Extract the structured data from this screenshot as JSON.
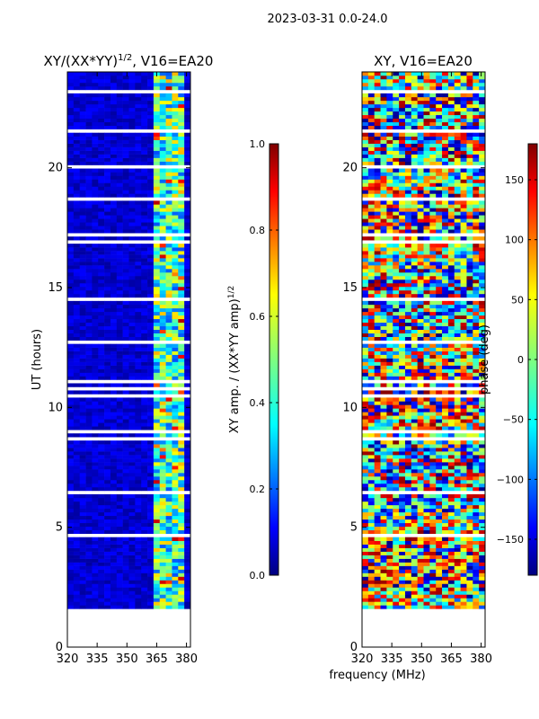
{
  "suptitle": "2023-03-31 0.0-24.0",
  "shared_xlabel": "frequency (MHz)",
  "chart_data": [
    {
      "type": "heatmap",
      "title": "XY/(XX*YY)",
      "title_exp": "1/2",
      "title_suffix": ", V16=EA20",
      "ylabel": "UT (hours)",
      "xlim": [
        320,
        382
      ],
      "ylim": [
        0,
        24
      ],
      "xticks": [
        320,
        335,
        350,
        365,
        380
      ],
      "yticks": [
        0,
        5,
        10,
        15,
        20
      ],
      "data_extent_y": [
        1.6,
        24
      ],
      "bright_band_freq": [
        362,
        380
      ],
      "colorbar": {
        "label": "XY amp. / (XX*YY amp)",
        "label_exp": "1/2",
        "range": [
          0.0,
          1.0
        ],
        "ticks": [
          "0.0",
          "0.2",
          "0.4",
          "0.6",
          "0.8",
          "1.0"
        ],
        "colormap": "jet"
      }
    },
    {
      "type": "heatmap",
      "title": "XY, V16=EA20",
      "xlim": [
        320,
        382
      ],
      "ylim": [
        0,
        24
      ],
      "xticks": [
        320,
        335,
        350,
        365,
        380
      ],
      "yticks": [
        0,
        5,
        10,
        15,
        20
      ],
      "data_extent_y": [
        1.6,
        24
      ],
      "colorbar": {
        "label": "phase (deg)",
        "range": [
          -180,
          180
        ],
        "ticks": [
          "-150",
          "-100",
          "-50",
          "0",
          "50",
          "100",
          "150"
        ],
        "colormap": "jet"
      }
    }
  ]
}
